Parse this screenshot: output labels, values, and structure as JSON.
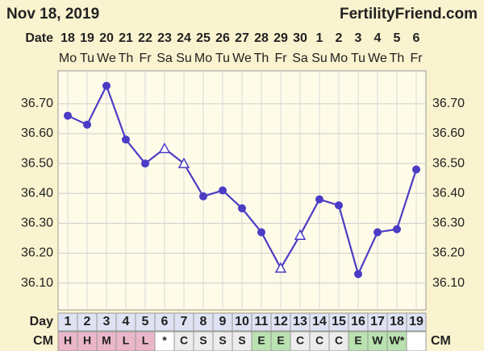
{
  "chart_data": {
    "type": "line",
    "title": "Nov 18, 2019",
    "source": "FertilityFriend.com",
    "date_label": "Date",
    "day_label": "Day",
    "cm_label": "CM",
    "dates": [
      18,
      19,
      20,
      21,
      22,
      23,
      24,
      25,
      26,
      27,
      28,
      29,
      30,
      1,
      2,
      3,
      4,
      5,
      6
    ],
    "weekdays": [
      "Mo",
      "Tu",
      "We",
      "Th",
      "Fr",
      "Sa",
      "Su",
      "Mo",
      "Tu",
      "We",
      "Th",
      "Fr",
      "Sa",
      "Su",
      "Mo",
      "Tu",
      "We",
      "Th",
      "Fr"
    ],
    "days": [
      1,
      2,
      3,
      4,
      5,
      6,
      7,
      8,
      9,
      10,
      11,
      12,
      13,
      14,
      15,
      16,
      17,
      18,
      19
    ],
    "series": [
      {
        "color": "#4b3cc4",
        "values": [
          36.66,
          36.63,
          36.76,
          36.58,
          36.5,
          36.55,
          36.5,
          36.39,
          36.41,
          36.35,
          36.27,
          36.15,
          36.26,
          36.38,
          36.36,
          36.13,
          36.27,
          36.28,
          36.48
        ],
        "markers": [
          "circle",
          "circle",
          "circle",
          "circle",
          "circle",
          "triangle",
          "triangle",
          "circle",
          "circle",
          "circle",
          "circle",
          "triangle",
          "triangle",
          "circle",
          "circle",
          "circle",
          "circle",
          "circle",
          "circle"
        ]
      }
    ],
    "cm": [
      "H",
      "H",
      "M",
      "L",
      "L",
      "*",
      "C",
      "S",
      "S",
      "S",
      "E",
      "E",
      "C",
      "C",
      "C",
      "E",
      "W",
      "W*",
      null
    ],
    "cm_colors": [
      "#eab6c9",
      "#eab6c9",
      "#eab6c9",
      "#eab6c9",
      "#eab6c9",
      "#ffffff",
      "#ececec",
      "#ececec",
      "#ececec",
      "#ececec",
      "#b9e2b0",
      "#b9e2b0",
      "#ececec",
      "#ececec",
      "#ececec",
      "#b9e2b0",
      "#b9e2b0",
      "#b9e2b0",
      "#ffffff"
    ],
    "ylim": [
      36.01,
      36.81
    ],
    "yticks": [
      {
        "value": 36.1,
        "label": "36.10"
      },
      {
        "value": 36.2,
        "label": "36.20"
      },
      {
        "value": 36.3,
        "label": "36.30"
      },
      {
        "value": 36.4,
        "label": "36.40"
      },
      {
        "value": 36.5,
        "label": "36.50"
      },
      {
        "value": 36.6,
        "label": "36.60"
      },
      {
        "value": 36.7,
        "label": "36.70"
      }
    ],
    "grid": true
  }
}
